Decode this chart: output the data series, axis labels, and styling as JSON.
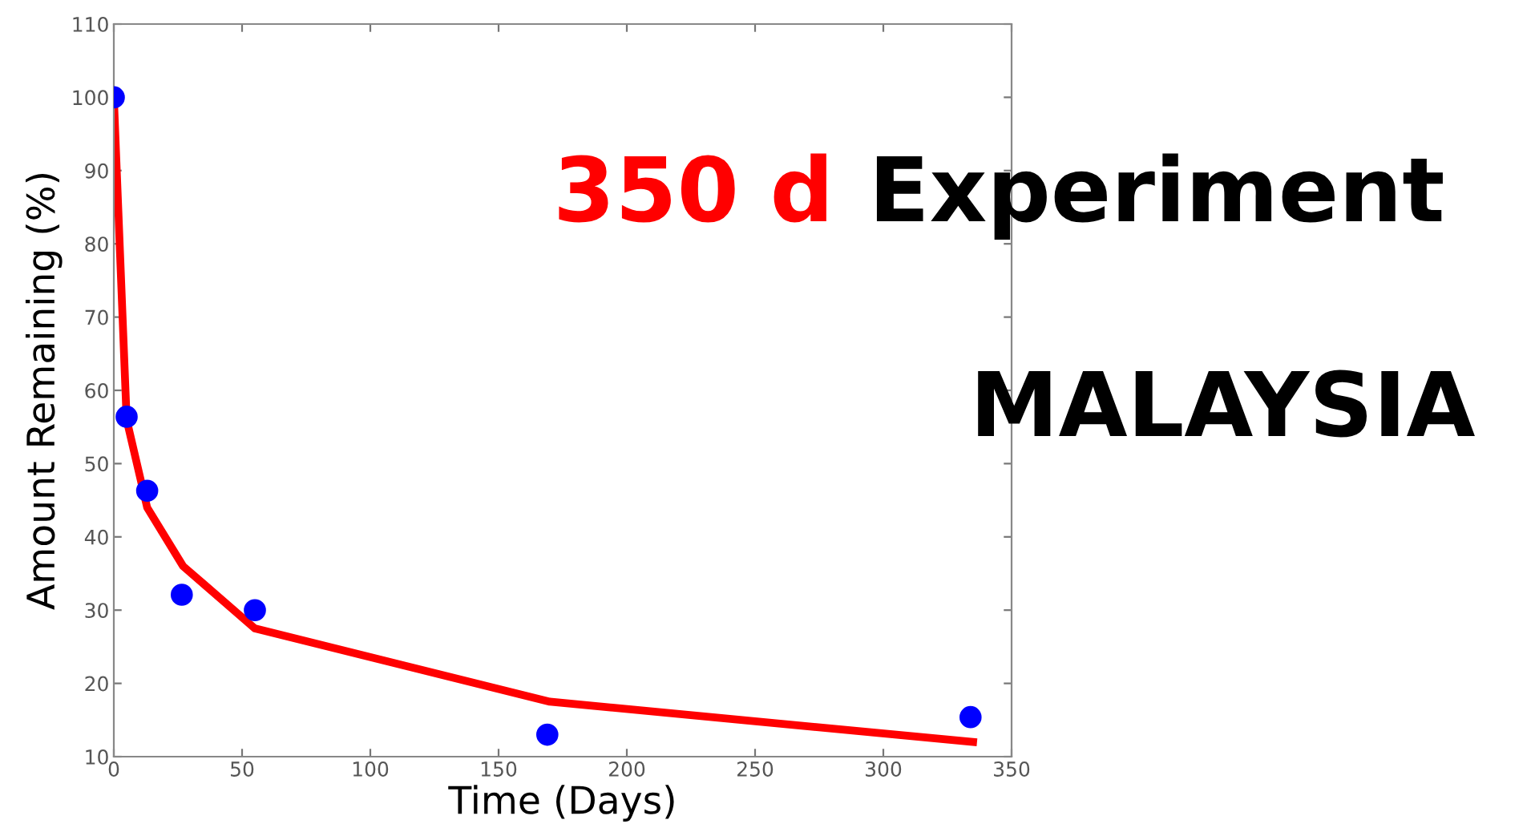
{
  "chart_data": {
    "type": "scatter",
    "xlabel": "Time (Days)",
    "ylabel": "Amount Remaining (%)",
    "series": [
      {
        "color": "#0000ff",
        "marker": "circle",
        "x": [
          0,
          5,
          13,
          26.5,
          55,
          169,
          334
        ],
        "values": [
          100,
          56.4,
          46.3,
          32.1,
          30,
          13,
          15.4
        ]
      },
      {
        "type": "line",
        "color": "#ff0000",
        "marker": "none",
        "line_style": "solid",
        "x": [
          0,
          5,
          13,
          27,
          55,
          170,
          335
        ],
        "values": [
          100,
          56,
          44,
          36,
          27.5,
          17.5,
          12
        ]
      }
    ],
    "xlim": [
      0,
      350
    ],
    "xticks": [
      0,
      50,
      100,
      150,
      200,
      250,
      300,
      350
    ],
    "ylim": [
      10,
      110
    ],
    "yticks": [
      10,
      20,
      30,
      40,
      50,
      60,
      70,
      80,
      90,
      100,
      110
    ],
    "grid": false,
    "legend": false,
    "annotations": [
      "350 d",
      "Experiment",
      "MALAYSIA"
    ]
  }
}
